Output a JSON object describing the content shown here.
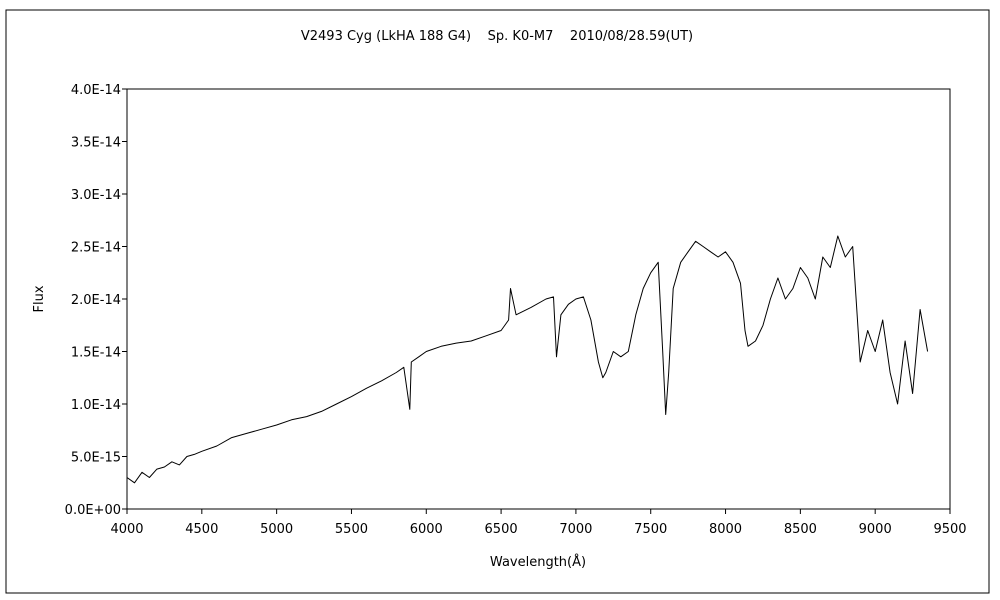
{
  "chart_data": {
    "type": "line",
    "title": "V2493 Cyg (LkHA 188 G4)    Sp. K0-M7    2010/08/28.59(UT)",
    "xlabel": "Wavelength(Å)",
    "ylabel": "Flux",
    "xlim": [
      4000,
      9500
    ],
    "ylim": [
      0,
      4e-14
    ],
    "x_ticks": [
      4000,
      4500,
      5000,
      5500,
      6000,
      6500,
      7000,
      7500,
      8000,
      8500,
      9000,
      9500
    ],
    "x_tick_labels": [
      "4000",
      "4500",
      "5000",
      "5500",
      "6000",
      "6500",
      "7000",
      "7500",
      "8000",
      "8500",
      "9000",
      "9500"
    ],
    "y_ticks": [
      0,
      5e-15,
      1e-14,
      1.5e-14,
      2e-14,
      2.5e-14,
      3e-14,
      3.5e-14,
      4e-14
    ],
    "y_tick_labels": [
      "0.0E+00",
      "5.0E-15",
      "1.0E-14",
      "1.5E-14",
      "2.0E-14",
      "2.5E-14",
      "3.0E-14",
      "3.5E-14",
      "4.0E-14"
    ],
    "grid": false,
    "legend": "none",
    "series": [
      {
        "line_color": "#000000",
        "x": [
          4000,
          4050,
          4100,
          4150,
          4200,
          4250,
          4300,
          4350,
          4400,
          4450,
          4500,
          4600,
          4700,
          4800,
          4900,
          5000,
          5100,
          5200,
          5300,
          5400,
          5500,
          5600,
          5700,
          5800,
          5850,
          5890,
          5900,
          5950,
          6000,
          6100,
          6200,
          6300,
          6400,
          6500,
          6550,
          6563,
          6600,
          6700,
          6800,
          6850,
          6870,
          6900,
          6950,
          7000,
          7050,
          7100,
          7150,
          7180,
          7200,
          7250,
          7300,
          7350,
          7400,
          7450,
          7500,
          7550,
          7580,
          7600,
          7620,
          7650,
          7700,
          7750,
          7800,
          7850,
          7900,
          7950,
          8000,
          8050,
          8100,
          8130,
          8150,
          8200,
          8250,
          8300,
          8350,
          8400,
          8450,
          8500,
          8550,
          8600,
          8650,
          8700,
          8750,
          8800,
          8850,
          8900,
          8950,
          9000,
          9050,
          9100,
          9150,
          9200,
          9250,
          9300,
          9350
        ],
        "y": [
          3e-15,
          2.5e-15,
          3.5e-15,
          3e-15,
          3.8e-15,
          4e-15,
          4.5e-15,
          4.2e-15,
          5e-15,
          5.2e-15,
          5.5e-15,
          6e-15,
          6.8e-15,
          7.2e-15,
          7.6e-15,
          8e-15,
          8.5e-15,
          8.8e-15,
          9.3e-15,
          1e-14,
          1.07e-14,
          1.15e-14,
          1.22e-14,
          1.3e-14,
          1.35e-14,
          9.5e-15,
          1.4e-14,
          1.45e-14,
          1.5e-14,
          1.55e-14,
          1.58e-14,
          1.6e-14,
          1.65e-14,
          1.7e-14,
          1.8e-14,
          2.1e-14,
          1.85e-14,
          1.92e-14,
          2e-14,
          2.02e-14,
          1.45e-14,
          1.85e-14,
          1.95e-14,
          2e-14,
          2.02e-14,
          1.8e-14,
          1.4e-14,
          1.25e-14,
          1.3e-14,
          1.5e-14,
          1.45e-14,
          1.5e-14,
          1.85e-14,
          2.1e-14,
          2.25e-14,
          2.35e-14,
          1.5e-14,
          9e-15,
          1.3e-14,
          2.1e-14,
          2.35e-14,
          2.45e-14,
          2.55e-14,
          2.5e-14,
          2.45e-14,
          2.4e-14,
          2.45e-14,
          2.35e-14,
          2.15e-14,
          1.7e-14,
          1.55e-14,
          1.6e-14,
          1.75e-14,
          2e-14,
          2.2e-14,
          2e-14,
          2.1e-14,
          2.3e-14,
          2.2e-14,
          2e-14,
          2.4e-14,
          2.3e-14,
          2.6e-14,
          2.4e-14,
          2.5e-14,
          1.4e-14,
          1.7e-14,
          1.5e-14,
          1.8e-14,
          1.3e-14,
          1e-14,
          1.6e-14,
          1.1e-14,
          1.9e-14,
          1.5e-14
        ]
      }
    ]
  }
}
